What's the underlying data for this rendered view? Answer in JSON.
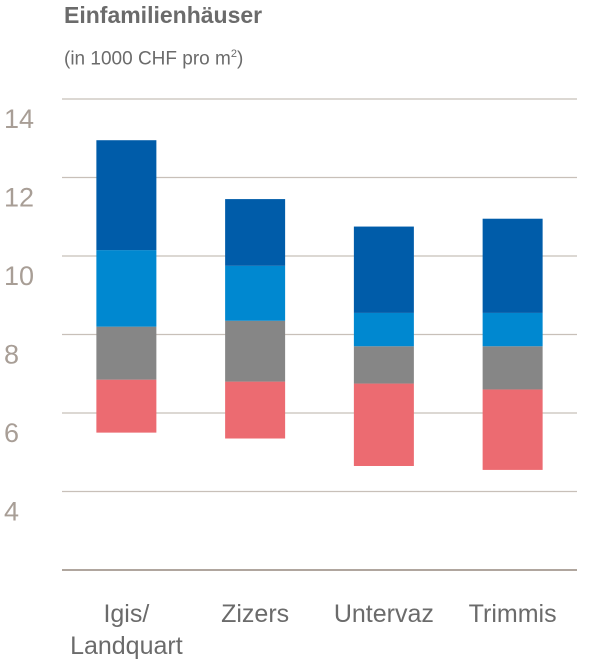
{
  "header": {
    "title": "Einfamilienhäuser",
    "subtitle_main": "(in 1000 CHF pro m",
    "subtitle_sup": "2",
    "subtitle_end": ")"
  },
  "chart_data": {
    "type": "bar",
    "stacked": true,
    "title": "Einfamilienhäuser",
    "subtitle": "(in 1000 CHF pro m2)",
    "xlabel": "",
    "ylabel": "",
    "ylim": [
      2,
      14
    ],
    "yticks": [
      4,
      6,
      8,
      10,
      12,
      14
    ],
    "grid": true,
    "categories": [
      {
        "label_lines": [
          "Igis/",
          "Landquart"
        ]
      },
      {
        "label_lines": [
          "Zizers"
        ]
      },
      {
        "label_lines": [
          "Untervaz"
        ]
      },
      {
        "label_lines": [
          "Trimmis"
        ]
      }
    ],
    "segment_colors": [
      "#ec6b71",
      "#868686",
      "#0088d0",
      "#005ca9"
    ],
    "bars": [
      {
        "boundaries": [
          5.5,
          6.85,
          8.2,
          10.15,
          12.95
        ]
      },
      {
        "boundaries": [
          5.35,
          6.8,
          8.35,
          9.75,
          11.45
        ]
      },
      {
        "boundaries": [
          4.65,
          6.75,
          7.7,
          8.55,
          10.75
        ]
      },
      {
        "boundaries": [
          4.55,
          6.6,
          7.7,
          8.55,
          10.95
        ]
      }
    ]
  }
}
